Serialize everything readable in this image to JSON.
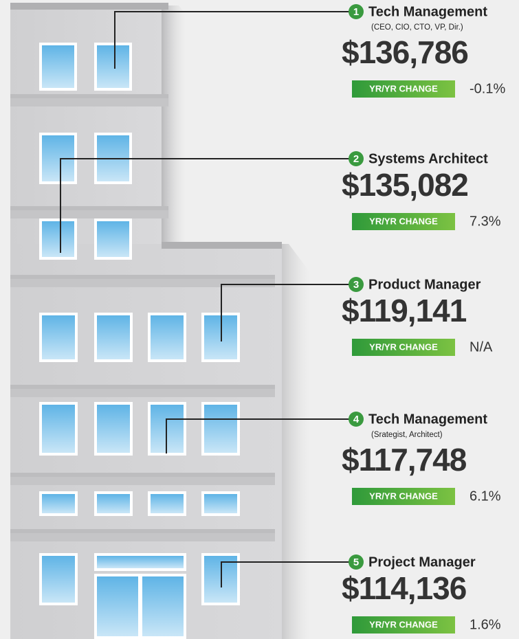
{
  "items": [
    {
      "rank": "1",
      "title": "Tech Management",
      "subtitle": "(CEO, CIO, CTO, VP, Dir.)",
      "salary": "$136,786",
      "change_label": "YR/YR CHANGE",
      "change": "-0.1%"
    },
    {
      "rank": "2",
      "title": "Systems Architect",
      "salary": "$135,082",
      "change_label": "YR/YR CHANGE",
      "change": "7.3%"
    },
    {
      "rank": "3",
      "title": "Product Manager",
      "salary": "$119,141",
      "change_label": "YR/YR CHANGE",
      "change": "N/A"
    },
    {
      "rank": "4",
      "title": "Tech Management",
      "subtitle": "(Srategist, Architect)",
      "salary": "$117,748",
      "change_label": "YR/YR CHANGE",
      "change": "6.1%"
    },
    {
      "rank": "5",
      "title": "Project Manager",
      "salary": "$114,136",
      "change_label": "YR/YR CHANGE",
      "change": "1.6%"
    }
  ]
}
